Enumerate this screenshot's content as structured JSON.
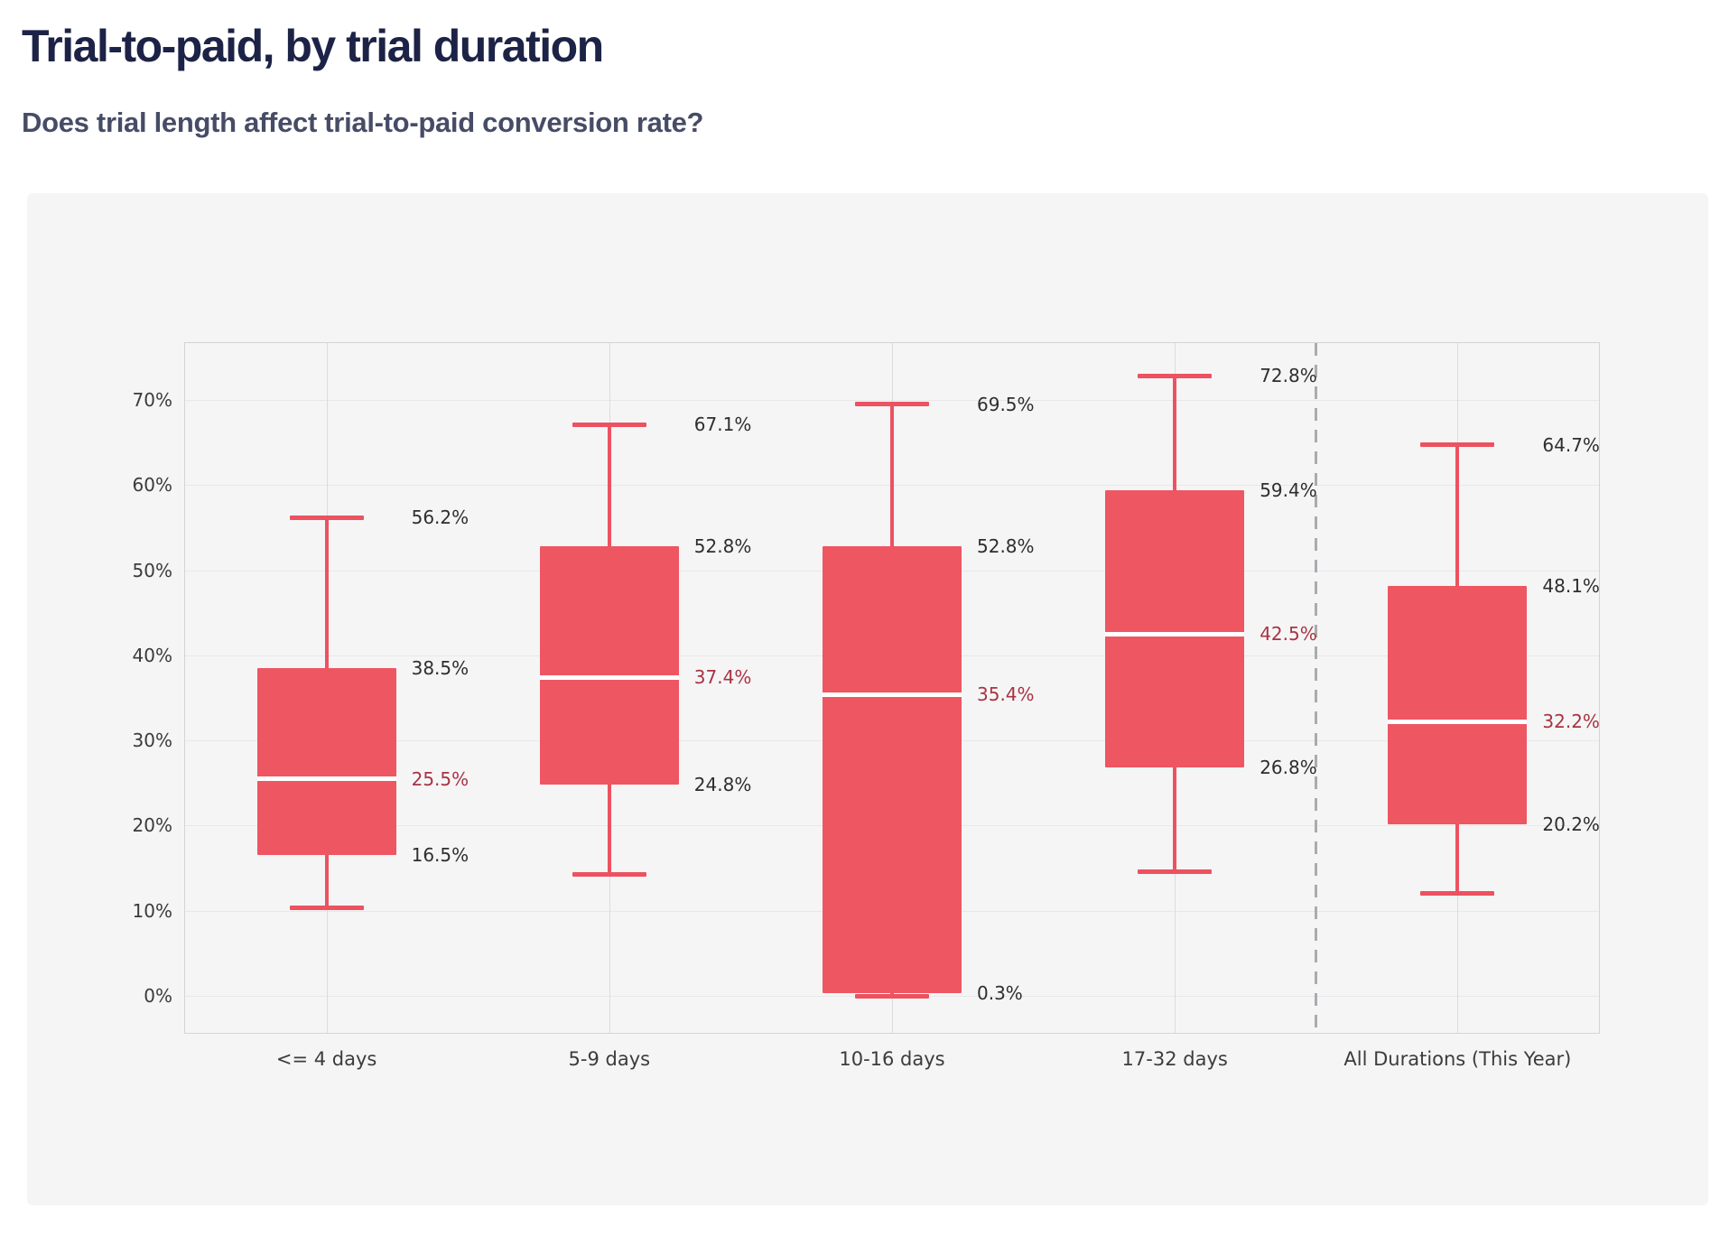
{
  "header": {
    "title": "Trial-to-paid, by trial duration",
    "subtitle": "Does trial length affect trial-to-paid conversion rate?"
  },
  "colors": {
    "box_fill": "#ee5662",
    "whisker": "#ec5260",
    "median_line": "#ffffff",
    "median_label_text": "#a93342",
    "value_label_text": "#2e2e2e",
    "axis_text": "#3b3b3b",
    "card_background": "#f5f5f6",
    "grid_line": "#e8e8ea",
    "category_grid_line": "#dcdcdf",
    "separator_dash": "#ababaf",
    "title_text": "#1d2346",
    "subtitle_text": "#474c66"
  },
  "chart_data": {
    "type": "boxplot",
    "title": "Trial-to-paid, by trial duration",
    "subtitle": "Does trial length affect trial-to-paid conversion rate?",
    "xlabel": "",
    "ylabel": "",
    "grid": true,
    "legend_position": "none",
    "ylim": [
      -4.3,
      76.7
    ],
    "y_tick_unit": "%",
    "y_ticks": [
      {
        "label": "0%",
        "value": 0
      },
      {
        "label": "10%",
        "value": 10
      },
      {
        "label": "20%",
        "value": 20
      },
      {
        "label": "30%",
        "value": 30
      },
      {
        "label": "40%",
        "value": 40
      },
      {
        "label": "50%",
        "value": 50
      },
      {
        "label": "60%",
        "value": 60
      },
      {
        "label": "70%",
        "value": 70
      }
    ],
    "categories": [
      "<= 4 days",
      "5-9 days",
      "10-16 days",
      "17-32 days",
      "All Durations (This Year)"
    ],
    "separator_after_category": "17-32 days",
    "series": [
      {
        "category": "<= 4 days",
        "whisker_low": 10.3,
        "q1": 16.5,
        "median": 25.5,
        "q3": 38.5,
        "whisker_high": 56.2,
        "labels": {
          "whisker_high": "56.2%",
          "q3": "38.5%",
          "median": "25.5%",
          "q1": "16.5%"
        }
      },
      {
        "category": "5-9 days",
        "whisker_low": 14.3,
        "q1": 24.8,
        "median": 37.4,
        "q3": 52.8,
        "whisker_high": 67.1,
        "labels": {
          "whisker_high": "67.1%",
          "q3": "52.8%",
          "median": "37.4%",
          "q1": "24.8%"
        }
      },
      {
        "category": "10-16 days",
        "whisker_low": 0.0,
        "q1": 0.3,
        "median": 35.4,
        "q3": 52.8,
        "whisker_high": 69.5,
        "labels": {
          "whisker_high": "69.5%",
          "q3": "52.8%",
          "median": "35.4%",
          "q1": "0.3%"
        }
      },
      {
        "category": "17-32 days",
        "whisker_low": 14.6,
        "q1": 26.8,
        "median": 42.5,
        "q3": 59.4,
        "whisker_high": 72.8,
        "labels": {
          "whisker_high": "72.8%",
          "q3": "59.4%",
          "median": "42.5%",
          "q1": "26.8%"
        }
      },
      {
        "category": "All Durations (This Year)",
        "whisker_low": 12.0,
        "q1": 20.2,
        "median": 32.2,
        "q3": 48.1,
        "whisker_high": 64.7,
        "labels": {
          "whisker_high": "64.7%",
          "q3": "48.1%",
          "median": "32.2%",
          "q1": "20.2%"
        }
      }
    ]
  }
}
